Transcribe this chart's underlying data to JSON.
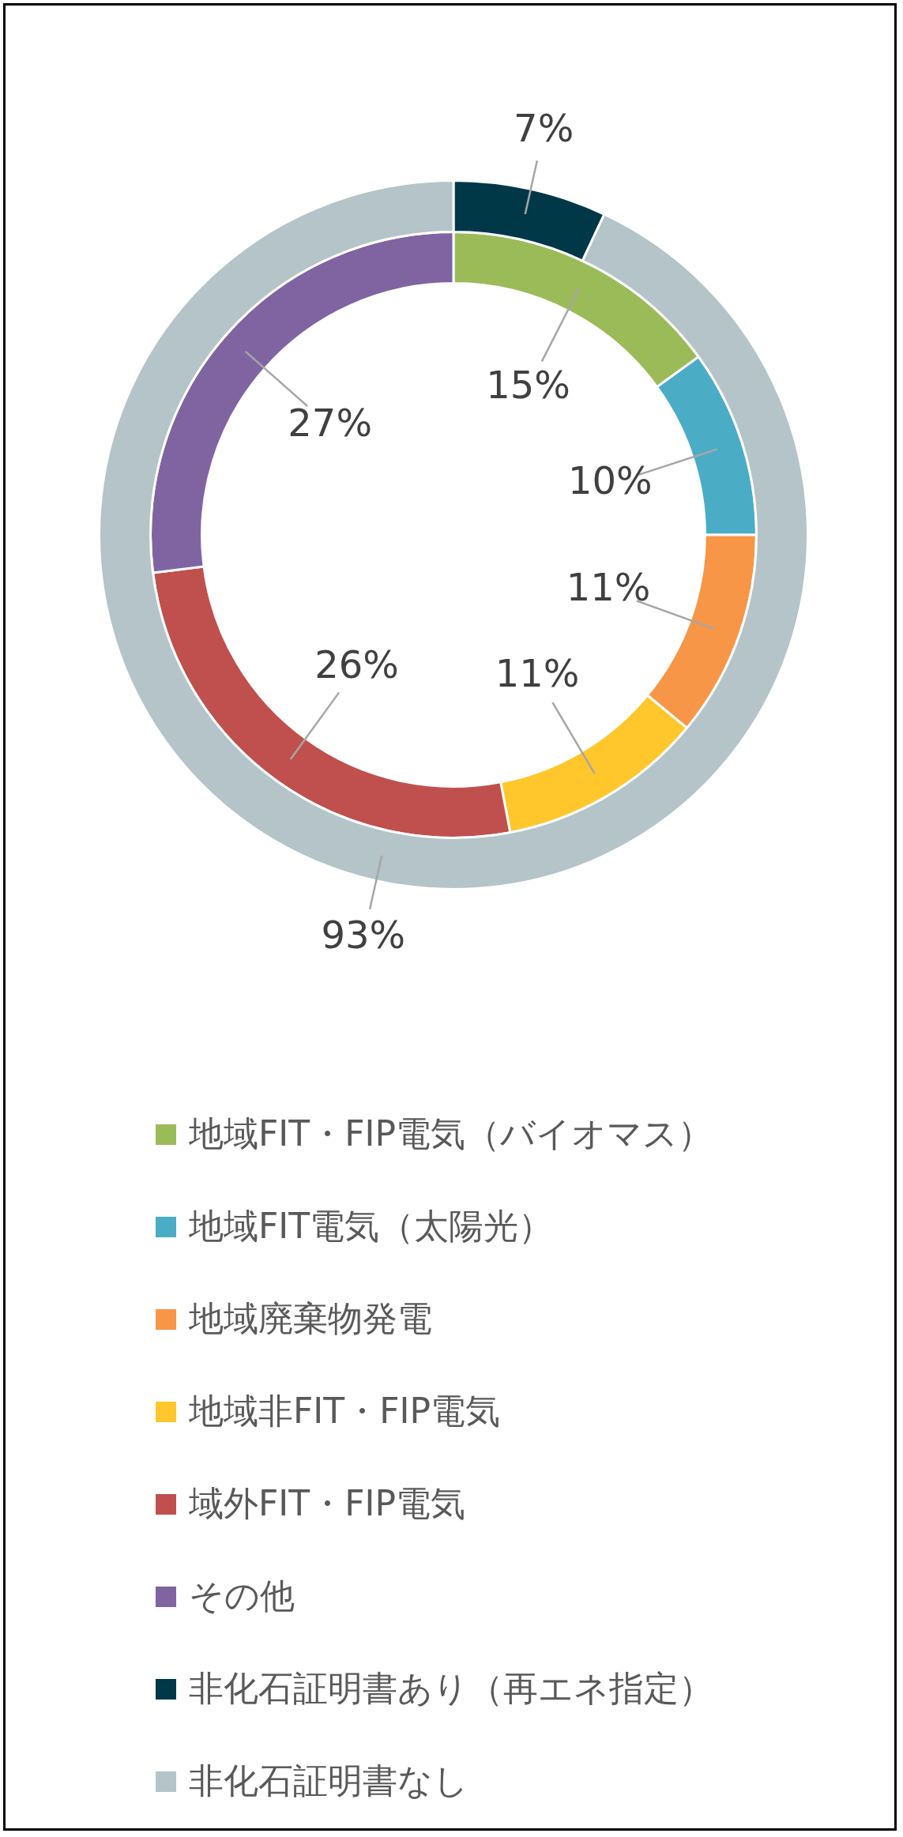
{
  "chart_data": {
    "type": "donut",
    "categories": [
      "地域FIT・FIP電気（バイオマス）",
      "地域FIT電気（太陽光）",
      "地域廃棄物発電",
      "地域非FIT・FIP電気",
      "域外FIT・FIP電気",
      "その他",
      "非化石証明書あり（再エネ指定）",
      "非化石証明書なし"
    ],
    "colors": [
      "#9bbb59",
      "#4bacc6",
      "#f79646",
      "#ffc72c",
      "#c0504d",
      "#8064a2",
      "#003847",
      "#b4c4c8"
    ],
    "series": [
      {
        "values": [
          15,
          10,
          11,
          11,
          26,
          27,
          null,
          null
        ],
        "value_labels": [
          "15%",
          "10%",
          "11%",
          "11%",
          "26%",
          "27%",
          null,
          null
        ]
      },
      {
        "values": [
          null,
          null,
          null,
          null,
          null,
          null,
          7,
          93
        ],
        "value_labels": [
          null,
          null,
          null,
          null,
          null,
          null,
          "7%",
          "93%"
        ]
      }
    ],
    "legend": "bottom"
  }
}
